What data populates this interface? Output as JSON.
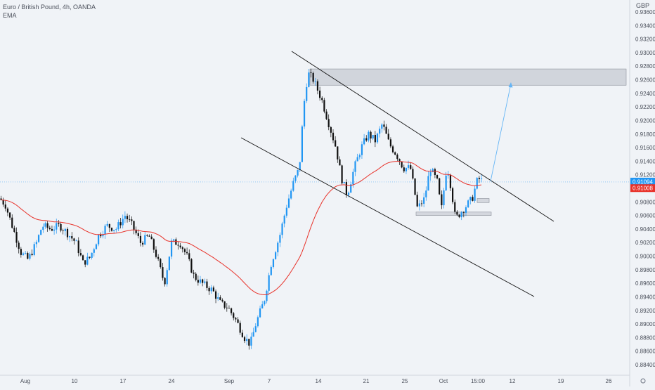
{
  "chart_data": {
    "type": "candlestick",
    "title": "Euro / British Pound, 4h, OANDA",
    "indicator": "EMA",
    "currency": "GBP",
    "last_price_label": "0.91094",
    "ema_value_label": "0.91008",
    "y_ticks": [
      "0.93600",
      "0.93400",
      "0.93200",
      "0.93000",
      "0.92800",
      "0.92600",
      "0.92400",
      "0.92200",
      "0.92000",
      "0.91800",
      "0.91600",
      "0.91400",
      "0.91200",
      "0.91000",
      "0.90800",
      "0.90600",
      "0.90400",
      "0.90200",
      "0.90000",
      "0.89800",
      "0.89600",
      "0.89400",
      "0.89200",
      "0.89000",
      "0.88800",
      "0.88600",
      "0.88400"
    ],
    "x_ticks": [
      "Aug",
      "10",
      "17",
      "24",
      "Sep",
      "7",
      "14",
      "21",
      "25",
      "Oct",
      "15:00",
      "12",
      "19",
      "26"
    ],
    "ylim": [
      0.8836,
      0.9365
    ],
    "colors": {
      "up": "#2196f3",
      "down": "#111111",
      "ema": "#e8322a",
      "projection": "#64b5f6",
      "last_price": "#2196f3",
      "ema_tag": "#e8322a"
    }
  }
}
